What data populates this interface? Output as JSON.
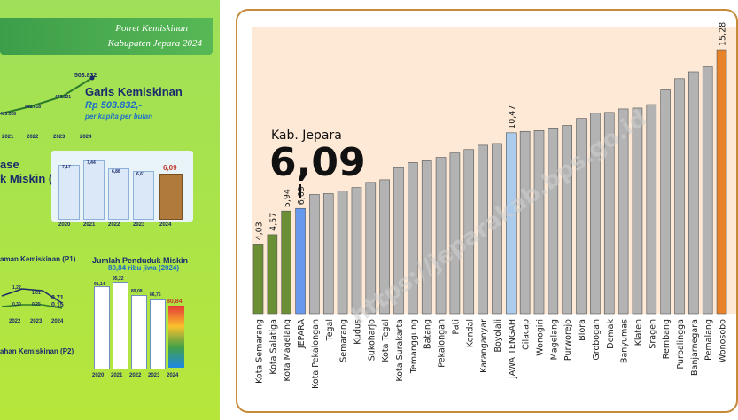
{
  "left_panel": {
    "header_line1": "Potret Kemiskinan",
    "header_line2": "Kabupaten Jepara 2024",
    "garis": {
      "title": "Garis Kemiskinan",
      "value": "Rp 503.832,-",
      "unit": "per kapita per bulan",
      "years": [
        "2021",
        "2022",
        "2023",
        "2024"
      ],
      "values": [
        "419.028",
        "442.618",
        "479.131",
        "503.832"
      ]
    },
    "persentase": {
      "title_a": "ase",
      "title_b": "k Miskin (Po)",
      "years": [
        "2020",
        "2021",
        "2022",
        "2023",
        "2024"
      ],
      "values": [
        7.17,
        7.44,
        6.88,
        6.61,
        6.09
      ],
      "labels": [
        "7,17",
        "7,44",
        "6,88",
        "6,61",
        "6,09"
      ]
    },
    "p1": {
      "title": "aman Kemiskinan (P1)",
      "years": [
        "2022",
        "2023",
        "2024"
      ],
      "labels": [
        "1,22",
        "1,01",
        "0,71",
        "0,30",
        "0,25",
        "0,15"
      ]
    },
    "jumlah": {
      "title": "Jumlah Penduduk Miskin",
      "subtitle": "80,84 ribu jiwa (2024)",
      "years": [
        "2020",
        "2021",
        "2022",
        "2023",
        "2024"
      ],
      "values": [
        91.14,
        95.22,
        89.08,
        86.75,
        80.84
      ],
      "labels": [
        "91,14",
        "95,22",
        "89,08",
        "86,75",
        "80,84"
      ]
    },
    "p2": {
      "title": "ahan Kemiskinan (P2)"
    }
  },
  "chart_data": {
    "type": "bar",
    "title": "",
    "xlabel": "",
    "ylabel": "",
    "annotation_label": "Kab. Jepara",
    "annotation_value": "6,09",
    "watermark": "https://jeparakab.bps.go.id",
    "ylim": [
      0,
      16
    ],
    "categories": [
      "Kota Semarang",
      "Kota Salatiga",
      "Kota Magelang",
      "JEPARA",
      "Kota Pekalongan",
      "Tegal",
      "Semarang",
      "Kudus",
      "Sukoharjo",
      "Kota Tegal",
      "Kota Surakarta",
      "Temanggung",
      "Batang",
      "Pekalongan",
      "Pati",
      "Kendal",
      "Karanganyar",
      "Boyolali",
      "JAWA TENGAH",
      "Cilacap",
      "Wonogiri",
      "Magelang",
      "Purworejo",
      "Blora",
      "Grobogan",
      "Demak",
      "Banyumas",
      "Klaten",
      "Sragen",
      "Rembang",
      "Purbalingga",
      "Banjarnegara",
      "Pemalang",
      "Wonosobo"
    ],
    "values": [
      4.03,
      4.57,
      5.94,
      6.09,
      6.9,
      6.95,
      7.1,
      7.3,
      7.6,
      7.75,
      8.45,
      8.75,
      8.85,
      9.05,
      9.3,
      9.5,
      9.75,
      9.85,
      10.47,
      10.55,
      10.6,
      10.7,
      10.9,
      11.3,
      11.6,
      11.65,
      11.85,
      11.9,
      12.1,
      12.95,
      13.6,
      14.0,
      14.3,
      15.28
    ],
    "value_labels": [
      "4,03",
      "4,57",
      "5,94",
      "6,09",
      "",
      "",
      "",
      "",
      "",
      "",
      "",
      "",
      "",
      "",
      "",
      "",
      "",
      "",
      "10,47",
      "",
      "",
      "",
      "",
      "",
      "",
      "",
      "",
      "",
      "",
      "",
      "",
      "",
      "",
      "15,28"
    ],
    "bar_colors": [
      "#6b8f35",
      "#6b8f35",
      "#6b8f35",
      "#6699ee",
      "#b3b3b3",
      "#b3b3b3",
      "#b3b3b3",
      "#b3b3b3",
      "#b3b3b3",
      "#b3b3b3",
      "#b3b3b3",
      "#b3b3b3",
      "#b3b3b3",
      "#b3b3b3",
      "#b3b3b3",
      "#b3b3b3",
      "#b3b3b3",
      "#b3b3b3",
      "#aacbeb",
      "#b3b3b3",
      "#b3b3b3",
      "#b3b3b3",
      "#b3b3b3",
      "#b3b3b3",
      "#b3b3b3",
      "#b3b3b3",
      "#b3b3b3",
      "#b3b3b3",
      "#b3b3b3",
      "#b3b3b3",
      "#b3b3b3",
      "#b3b3b3",
      "#b3b3b3",
      "#e8822a"
    ],
    "plot_background": "#fde9d5"
  }
}
